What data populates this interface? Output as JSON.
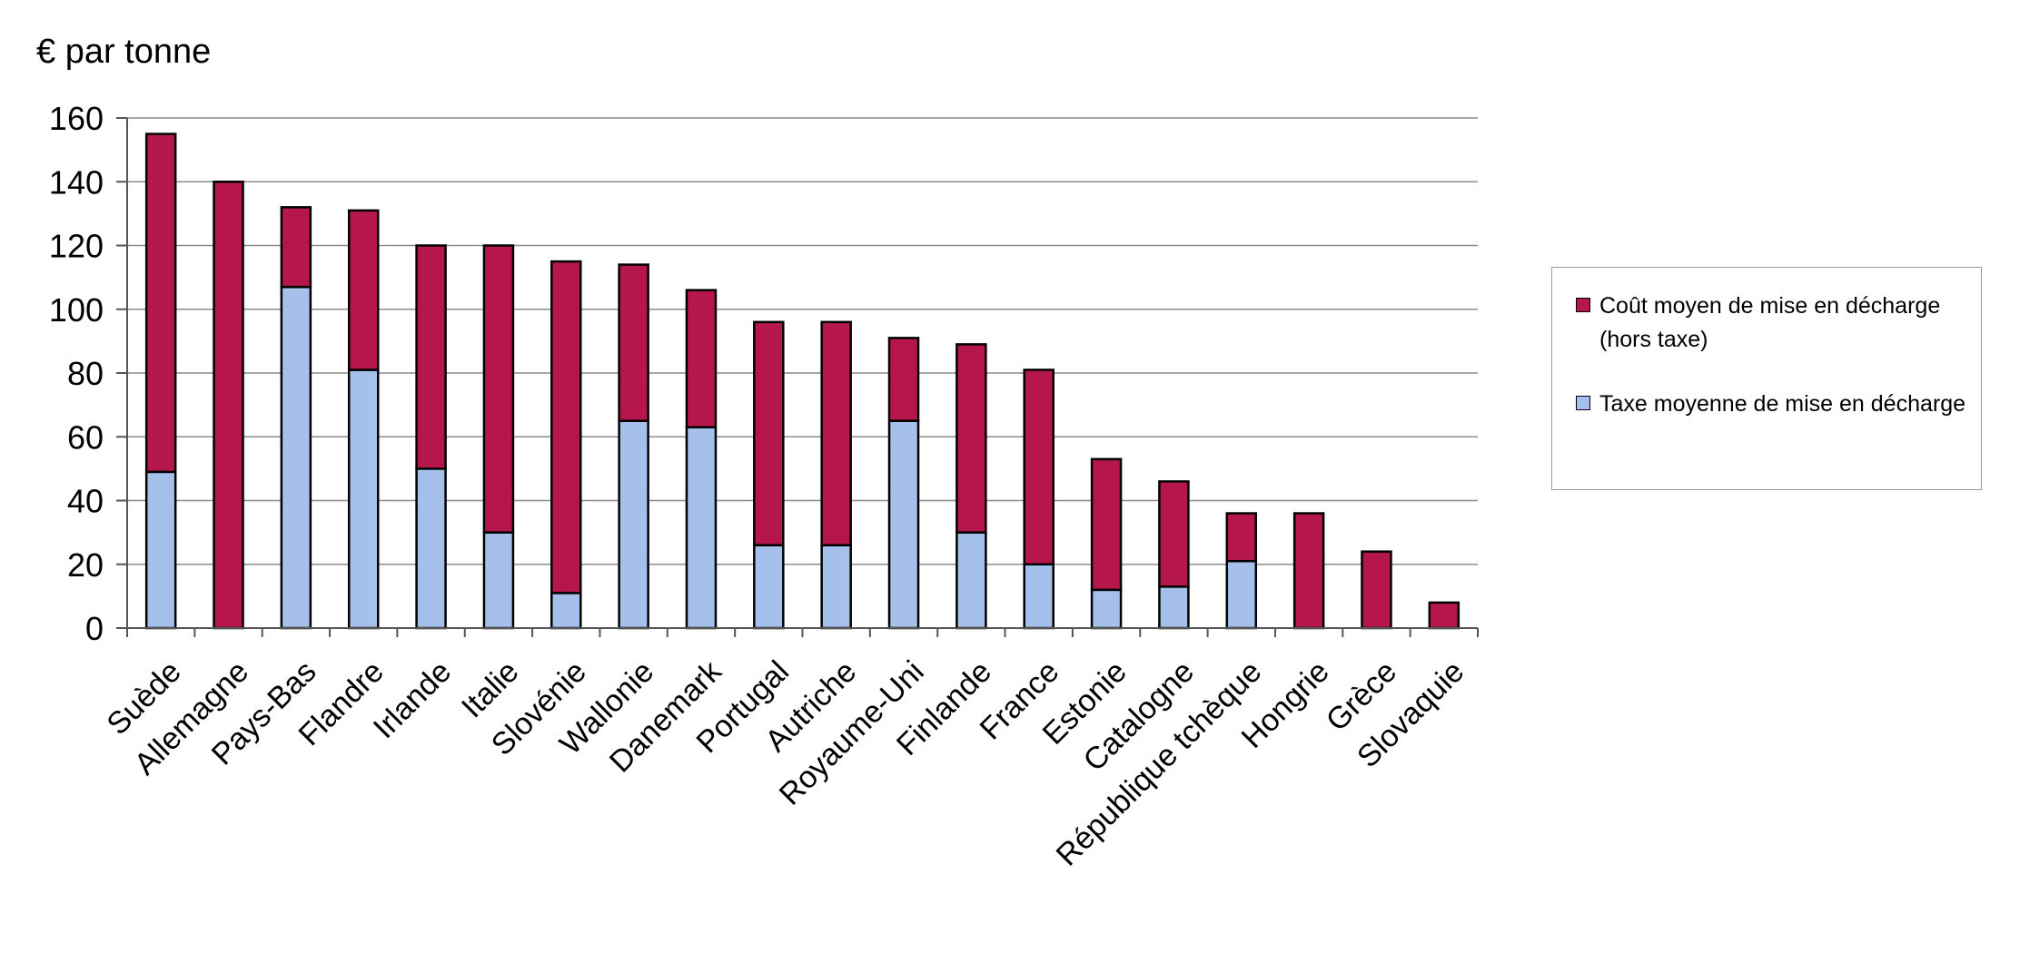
{
  "chart_data": {
    "type": "bar",
    "stacked": true,
    "title": "",
    "ylabel": "€ par tonne",
    "xlabel": "",
    "ylim": [
      0,
      160
    ],
    "yticks": [
      0,
      20,
      40,
      60,
      80,
      100,
      120,
      140,
      160
    ],
    "grid": true,
    "legend_position": "right",
    "categories": [
      "Suède",
      "Allemagne",
      "Pays-Bas",
      "Flandre",
      "Irlande",
      "Italie",
      "Slovénie",
      "Wallonie",
      "Danemark",
      "Portugal",
      "Autriche",
      "Royaume-Uni",
      "Finlande",
      "France",
      "Estonie",
      "Catalogne",
      "République tchèque",
      "Hongrie",
      "Grèce",
      "Slovaquie"
    ],
    "series": [
      {
        "name": "Taxe moyenne de mise en décharge",
        "color": "#a6c0ec",
        "values": [
          49,
          0,
          107,
          81,
          50,
          30,
          11,
          65,
          63,
          26,
          26,
          65,
          30,
          20,
          12,
          13,
          21,
          0,
          0,
          0
        ]
      },
      {
        "name": "Coût moyen de mise en décharge (hors taxe)",
        "color": "#b5174d",
        "values": [
          106,
          140,
          25,
          50,
          70,
          90,
          104,
          49,
          43,
          70,
          70,
          26,
          59,
          61,
          41,
          33,
          15,
          36,
          24,
          8
        ]
      }
    ]
  },
  "legend": {
    "items": [
      {
        "label": "Coût moyen de mise en décharge (hors taxe)",
        "color": "#b5174d"
      },
      {
        "label": "Taxe moyenne de mise en décharge",
        "color": "#a6c0ec"
      }
    ]
  }
}
